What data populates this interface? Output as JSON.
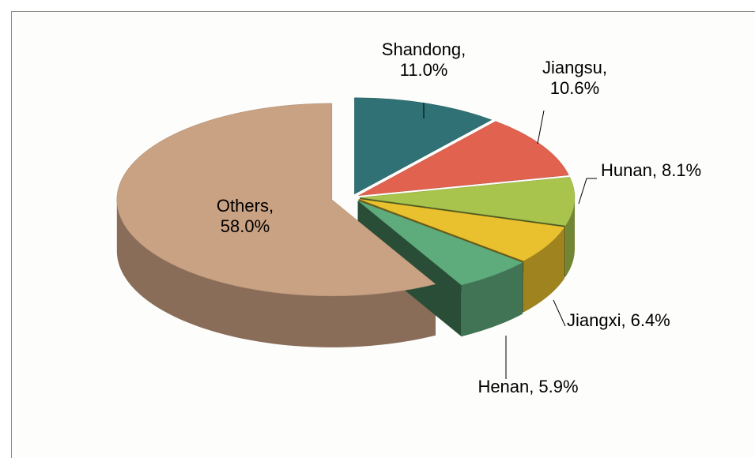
{
  "chart_data": {
    "type": "pie3d",
    "categories": [
      "Shandong,",
      "Jiangsu,",
      "Hunan,",
      "Jiangxi,",
      "Henan,",
      "Others,"
    ],
    "values": [
      11.0,
      10.6,
      8.1,
      6.4,
      5.9,
      58.0
    ],
    "value_labels": [
      "11.0%",
      "10.6%",
      "8.1%",
      "6.4%",
      "5.9%",
      "58.0%"
    ],
    "colors": [
      "#2f7175",
      "#e0624f",
      "#a8c44c",
      "#e9c12e",
      "#5eab7b",
      "#c9a183"
    ]
  }
}
